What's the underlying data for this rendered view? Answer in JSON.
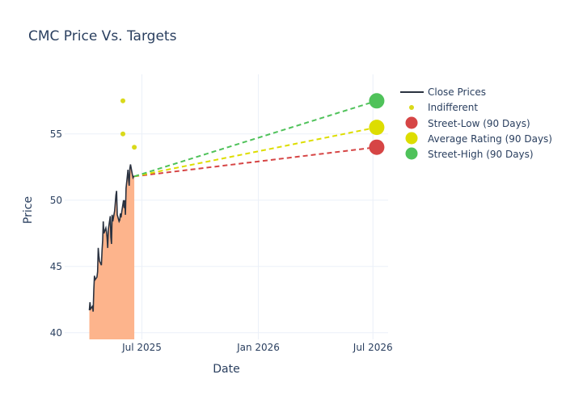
{
  "chart_data": {
    "type": "line",
    "title": "CMC Price Vs. Targets",
    "xlabel": "Date",
    "ylabel": "Price",
    "ylim": [
      39.5,
      59.5
    ],
    "xlim": [
      "2025-03-01",
      "2026-07-25"
    ],
    "x_ticks": [
      {
        "date": "2025-07-01",
        "label": "Jul 2025"
      },
      {
        "date": "2026-01-01",
        "label": "Jan 2026"
      },
      {
        "date": "2026-07-01",
        "label": "Jul 2026"
      }
    ],
    "y_ticks": [
      40,
      45,
      50,
      55
    ],
    "grid": true,
    "legend_placement": "top-right",
    "colors": {
      "close": "#2a3240",
      "fill": "#fdb48c",
      "indifferent": "#d9d91a",
      "low": "#d64545",
      "average": "#dddd00",
      "high": "#4fc25a"
    },
    "series": [
      {
        "name": "Close Prices",
        "kind": "line",
        "points": [
          [
            "2025-04-09",
            41.7
          ],
          [
            "2025-04-10",
            42.3
          ],
          [
            "2025-04-11",
            41.8
          ],
          [
            "2025-04-14",
            42.0
          ],
          [
            "2025-04-15",
            41.6
          ],
          [
            "2025-04-16",
            43.2
          ],
          [
            "2025-04-17",
            44.3
          ],
          [
            "2025-04-18",
            44.0
          ],
          [
            "2025-04-21",
            44.2
          ],
          [
            "2025-04-22",
            44.6
          ],
          [
            "2025-04-23",
            46.4
          ],
          [
            "2025-04-24",
            45.8
          ],
          [
            "2025-04-25",
            45.4
          ],
          [
            "2025-04-28",
            45.1
          ],
          [
            "2025-04-29",
            46.2
          ],
          [
            "2025-04-30",
            47.0
          ],
          [
            "2025-05-01",
            48.4
          ],
          [
            "2025-05-02",
            47.5
          ],
          [
            "2025-05-05",
            47.9
          ],
          [
            "2025-05-06",
            47.6
          ],
          [
            "2025-05-07",
            47.2
          ],
          [
            "2025-05-08",
            46.4
          ],
          [
            "2025-05-09",
            47.8
          ],
          [
            "2025-05-12",
            48.8
          ],
          [
            "2025-05-13",
            47.2
          ],
          [
            "2025-05-14",
            46.7
          ],
          [
            "2025-05-15",
            48.9
          ],
          [
            "2025-05-16",
            48.4
          ],
          [
            "2025-05-19",
            49.2
          ],
          [
            "2025-05-20",
            49.8
          ],
          [
            "2025-05-21",
            50.4
          ],
          [
            "2025-05-22",
            50.7
          ],
          [
            "2025-05-23",
            48.9
          ],
          [
            "2025-05-26",
            48.4
          ],
          [
            "2025-05-27",
            48.5
          ],
          [
            "2025-05-28",
            49.0
          ],
          [
            "2025-05-29",
            48.7
          ],
          [
            "2025-05-30",
            49.1
          ],
          [
            "2025-06-02",
            50.0
          ],
          [
            "2025-06-03",
            49.4
          ],
          [
            "2025-06-04",
            50.0
          ],
          [
            "2025-06-05",
            48.9
          ],
          [
            "2025-06-06",
            50.9
          ],
          [
            "2025-06-09",
            52.3
          ],
          [
            "2025-06-10",
            51.5
          ],
          [
            "2025-06-11",
            51.1
          ],
          [
            "2025-06-12",
            52.4
          ],
          [
            "2025-06-13",
            52.7
          ],
          [
            "2025-06-16",
            51.9
          ],
          [
            "2025-06-17",
            51.7
          ],
          [
            "2025-06-18",
            51.8
          ],
          [
            "2025-06-19",
            51.8
          ]
        ]
      },
      {
        "name": "Indifferent",
        "kind": "scatter",
        "points": [
          [
            "2025-06-01",
            57.5
          ],
          [
            "2025-06-01",
            55.0
          ],
          [
            "2025-06-19",
            54.0
          ]
        ]
      },
      {
        "name": "Street-Low (90 Days)",
        "kind": "target",
        "from": [
          "2025-06-19",
          51.8
        ],
        "to": [
          "2026-07-07",
          54.0
        ]
      },
      {
        "name": "Average Rating (90 Days)",
        "kind": "target",
        "from": [
          "2025-06-19",
          51.8
        ],
        "to": [
          "2026-07-07",
          55.5
        ]
      },
      {
        "name": "Street-High (90 Days)",
        "kind": "target",
        "from": [
          "2025-06-19",
          51.8
        ],
        "to": [
          "2026-07-07",
          57.5
        ]
      }
    ]
  }
}
